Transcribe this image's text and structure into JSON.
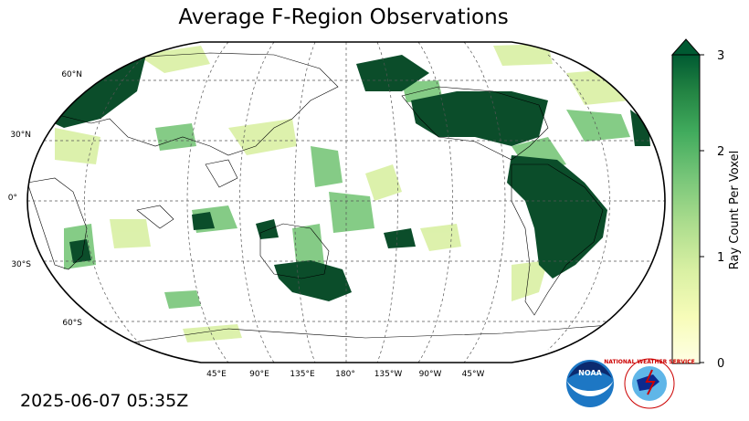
{
  "title": "Average F-Region Observations",
  "timestamp": "2025-06-07 05:35Z",
  "map": {
    "projection": "Robinson",
    "central_longitude": 180,
    "gridlines": true,
    "lat_labels": [
      "60°N",
      "30°N",
      "0°",
      "30°S",
      "60°S"
    ],
    "lon_labels": [
      "45°E",
      "90°E",
      "135°E",
      "180°",
      "135°W",
      "90°W",
      "45°W"
    ],
    "fill_color": "#0b4d2a",
    "coastline_color": "#000000"
  },
  "colorbar": {
    "label": "Ray Count Per Voxel",
    "ticks": [
      "0",
      "1",
      "2",
      "3"
    ],
    "range": [
      0,
      3
    ],
    "extend": "max",
    "cmap": "YlGn"
  },
  "logos": {
    "noaa": "NOAA",
    "nws": "NATIONAL WEATHER SERVICE"
  }
}
